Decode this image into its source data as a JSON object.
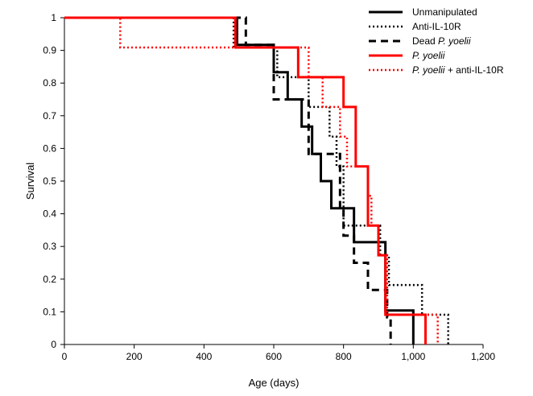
{
  "chart_data": {
    "type": "line",
    "step": true,
    "xlabel": "Age (days)",
    "ylabel": "Survival",
    "xlim": [
      0,
      1200
    ],
    "ylim": [
      0,
      1
    ],
    "xticks": [
      "0",
      "200",
      "400",
      "600",
      "800",
      "1,000",
      "1,200"
    ],
    "xtick_values": [
      0,
      200,
      400,
      600,
      800,
      1000,
      1200
    ],
    "yticks": [
      "0",
      "0.1",
      "0.2",
      "0.3",
      "0.4",
      "0.5",
      "0.6",
      "0.7",
      "0.8",
      "0.9",
      "1"
    ],
    "ytick_values": [
      0,
      0.1,
      0.2,
      0.3,
      0.4,
      0.5,
      0.6,
      0.7,
      0.8,
      0.9,
      1
    ],
    "grid": false,
    "legend_position": "top-right",
    "series": [
      {
        "name": "Unmanipulated",
        "name_parts": [
          {
            "text": "Unmanipulated",
            "italic": false
          }
        ],
        "color": "#000000",
        "dash": "solid",
        "x": [
          0,
          495,
          600,
          640,
          680,
          710,
          735,
          765,
          800,
          830,
          915,
          920,
          1000,
          1000
        ],
        "y": [
          1,
          0.917,
          0.833,
          0.75,
          0.667,
          0.583,
          0.5,
          0.417,
          0.417,
          0.313,
          0.313,
          0.104,
          0.104,
          0
        ]
      },
      {
        "name": "Anti-IL-10R",
        "name_parts": [
          {
            "text": "Anti-IL-10R",
            "italic": false
          }
        ],
        "color": "#000000",
        "dash": "dotted",
        "x": [
          0,
          485,
          610,
          640,
          700,
          760,
          780,
          800,
          880,
          905,
          930,
          1025,
          1100,
          1100
        ],
        "y": [
          1,
          0.909,
          0.818,
          0.818,
          0.727,
          0.636,
          0.545,
          0.364,
          0.364,
          0.273,
          0.182,
          0.091,
          0.091,
          0
        ]
      },
      {
        "name": "Dead P. yoelii",
        "name_parts": [
          {
            "text": "Dead ",
            "italic": false
          },
          {
            "text": "P. yoelii",
            "italic": true
          }
        ],
        "color": "#000000",
        "dash": "dashed",
        "x": [
          0,
          520,
          600,
          610,
          700,
          790,
          800,
          815,
          830,
          870,
          925,
          935,
          935
        ],
        "y": [
          1,
          0.917,
          0.75,
          0.75,
          0.583,
          0.417,
          0.333,
          0.333,
          0.25,
          0.167,
          0.083,
          0.083,
          0
        ]
      },
      {
        "name": "P. yoelii",
        "name_parts": [
          {
            "text": "P. yoelii",
            "italic": true
          }
        ],
        "color": "#ff0000",
        "dash": "solid",
        "x": [
          0,
          490,
          670,
          800,
          835,
          870,
          900,
          920,
          1035,
          1035
        ],
        "y": [
          1,
          0.909,
          0.818,
          0.727,
          0.545,
          0.364,
          0.273,
          0.091,
          0.091,
          0
        ]
      },
      {
        "name": "P. yoelii + anti-IL-10R",
        "name_parts": [
          {
            "text": "P. yoelii",
            "italic": true
          },
          {
            "text": " + anti-IL-10R",
            "italic": false
          }
        ],
        "color": "#ff0000",
        "dash": "dotted",
        "x": [
          0,
          160,
          700,
          740,
          790,
          810,
          870,
          880,
          900,
          925,
          1070,
          1070
        ],
        "y": [
          1,
          0.909,
          0.818,
          0.727,
          0.636,
          0.545,
          0.455,
          0.364,
          0.273,
          0.091,
          0.091,
          0
        ]
      }
    ]
  }
}
